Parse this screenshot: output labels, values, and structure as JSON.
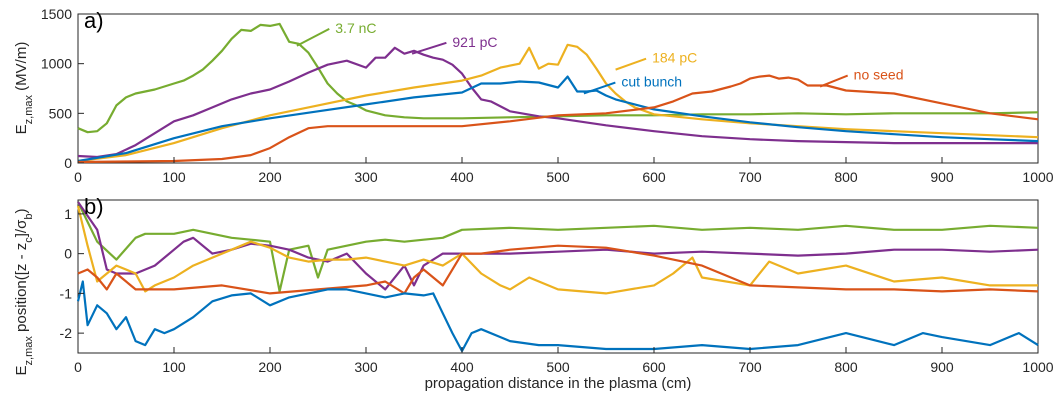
{
  "chart_data": [
    {
      "type": "line",
      "panel_label": "a)",
      "ylabel_main": "E",
      "ylabel_sub": "z,max",
      "ylabel_rest": " (MV/m)",
      "xlim": [
        0,
        1000
      ],
      "ylim": [
        0,
        1500
      ],
      "xticks": [
        0,
        100,
        200,
        300,
        400,
        500,
        600,
        700,
        800,
        900,
        1000
      ],
      "yticks": [
        0,
        500,
        1000,
        1500
      ],
      "grid": false,
      "legend": "annotations",
      "series": [
        {
          "name": "3.7 nC",
          "color": "#77ac30",
          "label_at": [
            268,
            1310
          ],
          "arrow_to": [
            228,
            1180
          ],
          "x": [
            0,
            10,
            20,
            30,
            40,
            50,
            60,
            70,
            80,
            90,
            100,
            110,
            120,
            130,
            140,
            150,
            160,
            170,
            180,
            190,
            200,
            210,
            220,
            230,
            240,
            250,
            260,
            270,
            280,
            290,
            300,
            320,
            340,
            360,
            380,
            400,
            450,
            500,
            550,
            600,
            650,
            700,
            750,
            800,
            850,
            900,
            950,
            1000
          ],
          "y": [
            350,
            310,
            320,
            400,
            580,
            660,
            700,
            720,
            740,
            770,
            800,
            830,
            880,
            940,
            1030,
            1130,
            1250,
            1340,
            1330,
            1390,
            1380,
            1400,
            1220,
            1200,
            1110,
            960,
            800,
            700,
            620,
            580,
            530,
            480,
            460,
            450,
            450,
            450,
            460,
            470,
            480,
            480,
            490,
            490,
            500,
            490,
            500,
            500,
            500,
            510
          ]
        },
        {
          "name": "921 pC",
          "color": "#7e2f8e",
          "label_at": [
            390,
            1170
          ],
          "arrow_to": [
            348,
            1100
          ],
          "x": [
            0,
            20,
            40,
            60,
            80,
            100,
            120,
            140,
            160,
            180,
            200,
            220,
            240,
            260,
            280,
            300,
            310,
            320,
            330,
            340,
            350,
            360,
            370,
            380,
            390,
            400,
            410,
            420,
            430,
            450,
            480,
            500,
            550,
            600,
            650,
            700,
            750,
            800,
            850,
            900,
            950,
            1000
          ],
          "y": [
            70,
            60,
            90,
            180,
            300,
            420,
            480,
            560,
            640,
            700,
            740,
            820,
            910,
            990,
            1030,
            960,
            1060,
            1060,
            1160,
            1100,
            1130,
            1090,
            1060,
            1040,
            990,
            900,
            760,
            640,
            620,
            520,
            470,
            450,
            380,
            320,
            270,
            240,
            220,
            210,
            200,
            200,
            200,
            200
          ]
        },
        {
          "name": "184 pC",
          "color": "#edb120",
          "label_at": [
            598,
            1010
          ],
          "arrow_to": [
            560,
            940
          ],
          "x": [
            0,
            50,
            100,
            150,
            200,
            250,
            300,
            350,
            400,
            420,
            440,
            460,
            470,
            480,
            490,
            500,
            510,
            520,
            530,
            540,
            550,
            560,
            570,
            580,
            600,
            650,
            700,
            750,
            800,
            850,
            900,
            950,
            1000
          ],
          "y": [
            20,
            80,
            200,
            350,
            480,
            580,
            680,
            760,
            830,
            880,
            960,
            1000,
            1160,
            950,
            1000,
            990,
            1190,
            1170,
            1090,
            950,
            800,
            700,
            620,
            560,
            490,
            440,
            400,
            370,
            340,
            320,
            300,
            280,
            260
          ]
        },
        {
          "name": "cut bunch",
          "color": "#0072bd",
          "label_at": [
            566,
            770
          ],
          "arrow_to": [
            527,
            700
          ],
          "x": [
            0,
            50,
            100,
            150,
            200,
            250,
            300,
            350,
            400,
            420,
            440,
            460,
            480,
            500,
            510,
            520,
            530,
            540,
            550,
            560,
            600,
            650,
            700,
            750,
            800,
            850,
            900,
            950,
            1000
          ],
          "y": [
            20,
            100,
            250,
            370,
            450,
            520,
            590,
            660,
            710,
            800,
            800,
            820,
            810,
            760,
            870,
            720,
            720,
            730,
            680,
            640,
            540,
            470,
            410,
            360,
            320,
            290,
            260,
            240,
            220
          ]
        },
        {
          "name": "no seed",
          "color": "#d95319",
          "label_at": [
            808,
            840
          ],
          "arrow_to": [
            773,
            770
          ],
          "x": [
            0,
            50,
            100,
            150,
            180,
            200,
            220,
            240,
            260,
            300,
            350,
            400,
            450,
            500,
            550,
            600,
            620,
            640,
            660,
            680,
            690,
            700,
            710,
            720,
            730,
            740,
            750,
            760,
            780,
            800,
            850,
            900,
            950,
            1000
          ],
          "y": [
            10,
            15,
            20,
            40,
            80,
            150,
            260,
            350,
            370,
            370,
            370,
            370,
            420,
            480,
            500,
            560,
            620,
            700,
            720,
            770,
            800,
            850,
            870,
            880,
            850,
            860,
            840,
            780,
            780,
            730,
            700,
            600,
            500,
            440
          ]
        }
      ]
    },
    {
      "type": "line",
      "panel_label": "b)",
      "ylabel_main": "E",
      "ylabel_sub": "z,max",
      "ylabel_rest": " position([z - z",
      "ylabel_sub2": "c",
      "ylabel_rest2": "]/σ",
      "ylabel_sub3": "b",
      "ylabel_end": ")",
      "xlabel": "propagation distance in the plasma (cm)",
      "xlim": [
        0,
        1000
      ],
      "ylim": [
        -2.5,
        1.35
      ],
      "xticks": [
        0,
        100,
        200,
        300,
        400,
        500,
        600,
        700,
        800,
        900,
        1000
      ],
      "yticks": [
        -2,
        -1,
        0,
        1
      ],
      "grid": false,
      "series": [
        {
          "name": "3.7 nC",
          "color": "#77ac30",
          "x": [
            0,
            10,
            20,
            40,
            60,
            70,
            80,
            100,
            120,
            140,
            160,
            180,
            200,
            210,
            220,
            240,
            250,
            260,
            280,
            300,
            320,
            340,
            360,
            380,
            400,
            450,
            500,
            550,
            600,
            650,
            700,
            750,
            800,
            850,
            900,
            950,
            1000
          ],
          "y": [
            1.3,
            0.8,
            0.3,
            -0.15,
            0.4,
            0.5,
            0.5,
            0.5,
            0.6,
            0.5,
            0.4,
            0.35,
            0.3,
            -0.95,
            0.1,
            0.2,
            -0.6,
            0.1,
            0.2,
            0.3,
            0.35,
            0.3,
            0.35,
            0.4,
            0.6,
            0.65,
            0.6,
            0.65,
            0.7,
            0.6,
            0.65,
            0.6,
            0.7,
            0.6,
            0.6,
            0.7,
            0.65
          ]
        },
        {
          "name": "921 pC",
          "color": "#7e2f8e",
          "x": [
            0,
            20,
            30,
            40,
            60,
            80,
            100,
            110,
            120,
            140,
            160,
            180,
            200,
            220,
            240,
            260,
            280,
            300,
            320,
            340,
            350,
            360,
            380,
            400,
            450,
            500,
            550,
            600,
            650,
            700,
            750,
            800,
            850,
            900,
            950,
            1000
          ],
          "y": [
            1.3,
            0.6,
            -0.4,
            -0.5,
            -0.5,
            -0.3,
            0.1,
            0.3,
            0.4,
            0.0,
            0.1,
            0.25,
            0.2,
            0.1,
            -0.1,
            -0.2,
            0.0,
            -0.5,
            -0.9,
            -0.3,
            -0.8,
            -0.3,
            0.0,
            0.0,
            0.0,
            0.05,
            0.1,
            0.0,
            0.05,
            0.0,
            -0.05,
            0.0,
            0.1,
            0.1,
            0.05,
            0.1
          ]
        },
        {
          "name": "184 pC",
          "color": "#edb120",
          "x": [
            0,
            10,
            20,
            40,
            60,
            70,
            80,
            100,
            120,
            140,
            160,
            180,
            200,
            220,
            240,
            260,
            280,
            300,
            320,
            340,
            360,
            380,
            400,
            420,
            440,
            450,
            470,
            500,
            550,
            600,
            620,
            640,
            650,
            700,
            720,
            750,
            800,
            850,
            900,
            950,
            1000
          ],
          "y": [
            1.2,
            0.2,
            -0.7,
            -0.3,
            -0.5,
            -0.95,
            -0.8,
            -0.6,
            -0.3,
            -0.1,
            0.1,
            0.3,
            0.15,
            -0.1,
            -0.2,
            -0.15,
            -0.15,
            -0.1,
            -0.2,
            -0.3,
            -0.15,
            -0.3,
            0.0,
            -0.5,
            -0.8,
            -0.9,
            -0.6,
            -0.9,
            -1.0,
            -0.8,
            -0.5,
            -0.1,
            -0.6,
            -0.8,
            -0.2,
            -0.5,
            -0.3,
            -0.7,
            -0.6,
            -0.8,
            -0.8
          ]
        },
        {
          "name": "no seed",
          "color": "#d95319",
          "x": [
            0,
            10,
            20,
            30,
            40,
            60,
            80,
            100,
            150,
            200,
            250,
            300,
            320,
            340,
            350,
            360,
            380,
            400,
            420,
            450,
            500,
            550,
            600,
            650,
            700,
            750,
            800,
            850,
            900,
            950,
            1000
          ],
          "y": [
            -0.5,
            -0.4,
            -0.6,
            -0.9,
            -0.5,
            -0.9,
            -0.9,
            -0.9,
            -0.8,
            -1.0,
            -0.9,
            -0.8,
            -0.7,
            -1.0,
            -0.6,
            -0.4,
            -0.8,
            0.0,
            0.0,
            0.1,
            0.2,
            0.15,
            -0.05,
            -0.3,
            -0.8,
            -0.85,
            -0.9,
            -0.9,
            -0.95,
            -0.9,
            -0.95
          ]
        },
        {
          "name": "cut bunch",
          "color": "#0072bd",
          "x": [
            0,
            5,
            10,
            20,
            30,
            40,
            50,
            60,
            70,
            80,
            90,
            100,
            120,
            140,
            160,
            180,
            200,
            220,
            240,
            260,
            280,
            300,
            320,
            340,
            360,
            370,
            380,
            390,
            400,
            410,
            420,
            440,
            450,
            480,
            500,
            550,
            600,
            650,
            700,
            750,
            800,
            850,
            880,
            900,
            950,
            980,
            1000
          ],
          "y": [
            -1.2,
            -0.7,
            -1.8,
            -1.3,
            -1.5,
            -1.9,
            -1.6,
            -2.2,
            -2.3,
            -1.9,
            -2.0,
            -1.9,
            -1.6,
            -1.2,
            -1.05,
            -1.0,
            -1.3,
            -1.1,
            -1.0,
            -0.9,
            -0.9,
            -1.0,
            -1.1,
            -1.0,
            -1.05,
            -1.0,
            -1.5,
            -2.0,
            -2.45,
            -2.0,
            -1.9,
            -2.1,
            -2.2,
            -2.3,
            -2.3,
            -2.4,
            -2.4,
            -2.3,
            -2.4,
            -2.3,
            -2.0,
            -2.3,
            -2.0,
            -2.1,
            -2.3,
            -2.0,
            -2.3
          ]
        }
      ]
    }
  ]
}
